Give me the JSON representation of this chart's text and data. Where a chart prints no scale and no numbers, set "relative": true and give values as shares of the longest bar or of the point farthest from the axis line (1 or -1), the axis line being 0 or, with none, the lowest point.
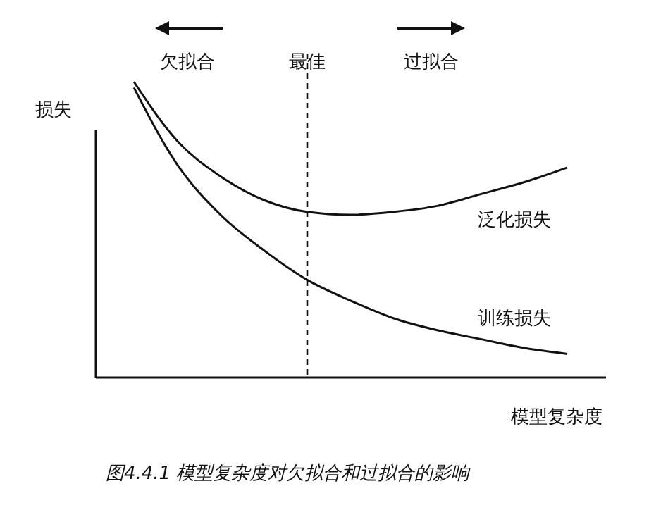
{
  "chart_data": {
    "type": "line",
    "relative": true,
    "ylabel": "损失",
    "xlabel": "模型复杂度",
    "categories": [
      null,
      null,
      null,
      null,
      null,
      null,
      null,
      null,
      null,
      null,
      null
    ],
    "series": [
      {
        "name": "泛化损失",
        "color": "#111111",
        "values": [
          1.0,
          0.8,
          0.68,
          0.6,
          0.56,
          0.55,
          0.56,
          0.58,
          0.62,
          0.66,
          0.71
        ]
      },
      {
        "name": "训练损失",
        "color": "#111111",
        "values": [
          0.98,
          0.72,
          0.55,
          0.43,
          0.33,
          0.26,
          0.2,
          0.16,
          0.13,
          0.1,
          0.08
        ]
      }
    ],
    "annotations": [
      "欠拟合",
      "过拟合",
      "图4.4.1 模型复杂度对欠拟合和过拟合的影响",
      "最佳"
    ],
    "marker": "none",
    "line_style": "solid"
  }
}
